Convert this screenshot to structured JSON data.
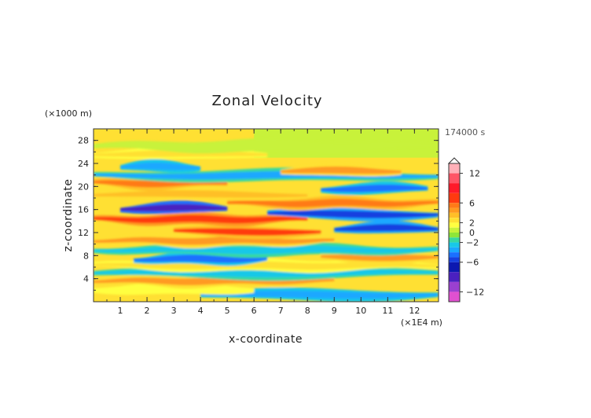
{
  "chart_data": {
    "type": "heatmap",
    "title": "Zonal Velocity",
    "xlabel": "x-coordinate",
    "ylabel": "z-coordinate",
    "x_unit": "(×1E4 m)",
    "y_unit": "(×1000 m)",
    "time_label": "174000 s",
    "xlim": [
      0,
      12.9
    ],
    "ylim": [
      0,
      30
    ],
    "x_ticks": [
      "1",
      "2",
      "3",
      "4",
      "5",
      "6",
      "7",
      "8",
      "9",
      "10",
      "11",
      "12"
    ],
    "y_ticks": [
      "4",
      "8",
      "12",
      "16",
      "20",
      "24",
      "28"
    ],
    "colorbar": {
      "ticks": [
        "12",
        "6",
        "2",
        "0",
        "−2",
        "−6",
        "−12"
      ],
      "levels": [
        14,
        12,
        10,
        8,
        6,
        5,
        4,
        3,
        2,
        1,
        0,
        -1,
        -2,
        -3,
        -4,
        -5,
        -6,
        -8,
        -10,
        -12,
        -14
      ],
      "colors": [
        "#ffb0b8",
        "#ff5566",
        "#ff1a2a",
        "#ff3a10",
        "#ff7a18",
        "#ff9a20",
        "#ffbf28",
        "#ffe033",
        "#ffff40",
        "#c8f23a",
        "#8ee63a",
        "#38d8a0",
        "#18c8e8",
        "#1aa8ff",
        "#1a70ff",
        "#1640e0",
        "#0c18b0",
        "#4a20c0",
        "#9a40d0",
        "#e050d0",
        "#ff44aa"
      ]
    },
    "velocity_bands": [
      {
        "z": 1.2,
        "value": -3.5,
        "x_extent": [
          4,
          12.9
        ]
      },
      {
        "z": 2.2,
        "value": 2.0,
        "x_extent": [
          0,
          6
        ]
      },
      {
        "z": 3.6,
        "value": 4.5,
        "x_extent": [
          0,
          9
        ]
      },
      {
        "z": 5.0,
        "value": -2.5,
        "x_extent": [
          0,
          12.9
        ]
      },
      {
        "z": 6.3,
        "value": 3.0,
        "x_extent": [
          0,
          12.9
        ]
      },
      {
        "z": 7.4,
        "value": -4.0,
        "x_extent": [
          1.5,
          6.5
        ]
      },
      {
        "z": 7.8,
        "value": 5.0,
        "x_extent": [
          8.5,
          12.9
        ]
      },
      {
        "z": 9.0,
        "value": -2.0,
        "x_extent": [
          0,
          12.9
        ]
      },
      {
        "z": 10.6,
        "value": 4.5,
        "x_extent": [
          0,
          9
        ]
      },
      {
        "z": 12.2,
        "value": 6.5,
        "x_extent": [
          3,
          8.5
        ]
      },
      {
        "z": 12.7,
        "value": -5.0,
        "x_extent": [
          9,
          12.9
        ]
      },
      {
        "z": 14.3,
        "value": 7.5,
        "x_extent": [
          0,
          8
        ]
      },
      {
        "z": 15.2,
        "value": -5.5,
        "x_extent": [
          6.5,
          12.9
        ]
      },
      {
        "z": 16.2,
        "value": -8.0,
        "x_extent": [
          1,
          5
        ]
      },
      {
        "z": 17.1,
        "value": 5.5,
        "x_extent": [
          5,
          12.9
        ]
      },
      {
        "z": 18.6,
        "value": 4.0,
        "x_extent": [
          0,
          8
        ]
      },
      {
        "z": 19.6,
        "value": -4.5,
        "x_extent": [
          8.5,
          12.5
        ]
      },
      {
        "z": 20.6,
        "value": 6.0,
        "x_extent": [
          0,
          5
        ]
      },
      {
        "z": 21.9,
        "value": -3.0,
        "x_extent": [
          0,
          12.9
        ]
      },
      {
        "z": 22.7,
        "value": 4.5,
        "x_extent": [
          7,
          11.5
        ]
      },
      {
        "z": 23.4,
        "value": -3.5,
        "x_extent": [
          1,
          4
        ]
      },
      {
        "z": 25.6,
        "value": 2.5,
        "x_extent": [
          0,
          6.5
        ]
      },
      {
        "z": 27.0,
        "value": 1.0,
        "x_extent": [
          0,
          12.9
        ]
      }
    ],
    "grid": false,
    "legend": "right"
  }
}
